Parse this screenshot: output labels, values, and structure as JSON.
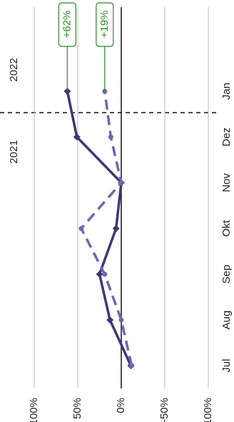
{
  "chart_data": {
    "type": "line",
    "categories": [
      "Jul",
      "Aug",
      "Sep",
      "Okt",
      "Nov",
      "Dez",
      "Jan"
    ],
    "series": [
      {
        "color": "#3d3775",
        "dash": false,
        "values": [
          -11,
          13,
          25,
          6,
          0,
          51,
          62
        ]
      },
      {
        "color": "#6f66b5",
        "dash": true,
        "values": [
          -12,
          0,
          19,
          46,
          0,
          12,
          19
        ]
      }
    ],
    "annotations": [
      {
        "label": "+62%",
        "value": 62
      },
      {
        "label": "+19%",
        "value": 19
      }
    ],
    "annotation_color": "#2a8a2a",
    "year_labels": [
      "2021",
      "2022"
    ],
    "ylim": [
      -110,
      100
    ],
    "yticks": [
      {
        "value": 100,
        "label": "100%"
      },
      {
        "value": 50,
        "label": "50%"
      },
      {
        "value": 0,
        "label": "0%"
      },
      {
        "value": -50,
        "label": "-50%"
      },
      {
        "value": -100,
        "label": "-100%"
      }
    ],
    "grid": true
  }
}
